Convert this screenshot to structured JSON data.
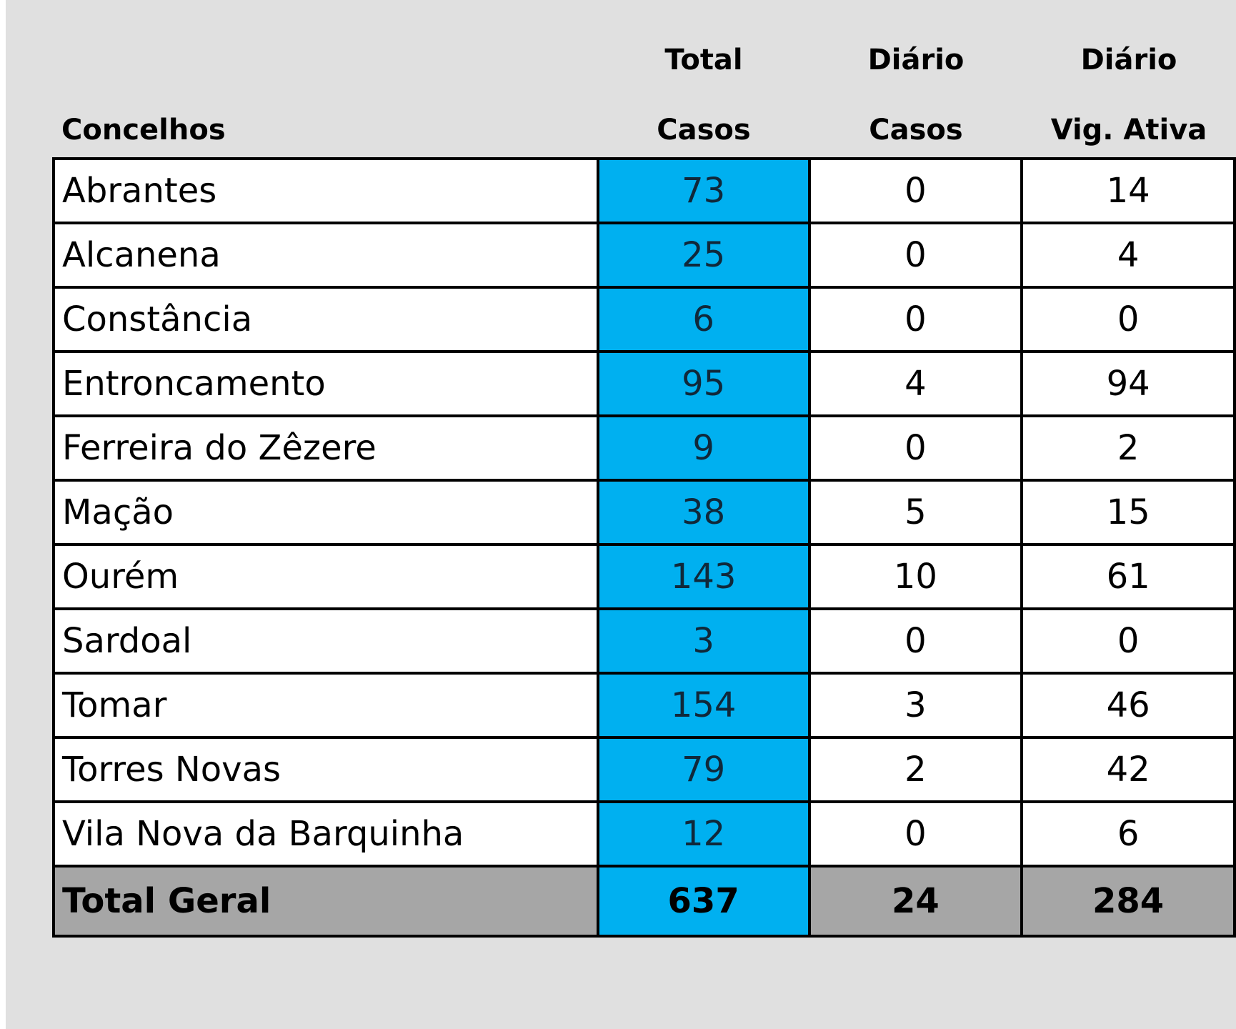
{
  "headers": {
    "concelhos": "Concelhos",
    "total_line1": "Total",
    "total_line2": "Casos",
    "diario_casos_line1": "Diário",
    "diario_casos_line2": "Casos",
    "diario_vig_line1": "Diário",
    "diario_vig_line2": "Vig. Ativa"
  },
  "rows": [
    {
      "concelho": "Abrantes",
      "total_casos": "73",
      "diario_casos": "0",
      "diario_vig_ativa": "14"
    },
    {
      "concelho": "Alcanena",
      "total_casos": "25",
      "diario_casos": "0",
      "diario_vig_ativa": "4"
    },
    {
      "concelho": "Constância",
      "total_casos": "6",
      "diario_casos": "0",
      "diario_vig_ativa": "0"
    },
    {
      "concelho": "Entroncamento",
      "total_casos": "95",
      "diario_casos": "4",
      "diario_vig_ativa": "94"
    },
    {
      "concelho": "Ferreira do Zêzere",
      "total_casos": "9",
      "diario_casos": "0",
      "diario_vig_ativa": "2"
    },
    {
      "concelho": "Mação",
      "total_casos": "38",
      "diario_casos": "5",
      "diario_vig_ativa": "15"
    },
    {
      "concelho": "Ourém",
      "total_casos": "143",
      "diario_casos": "10",
      "diario_vig_ativa": "61"
    },
    {
      "concelho": "Sardoal",
      "total_casos": "3",
      "diario_casos": "0",
      "diario_vig_ativa": "0"
    },
    {
      "concelho": "Tomar",
      "total_casos": "154",
      "diario_casos": "3",
      "diario_vig_ativa": "46"
    },
    {
      "concelho": "Torres Novas",
      "total_casos": "79",
      "diario_casos": "2",
      "diario_vig_ativa": "42"
    },
    {
      "concelho": "Vila Nova da Barquinha",
      "total_casos": "12",
      "diario_casos": "0",
      "diario_vig_ativa": "6"
    }
  ],
  "total": {
    "label": "Total Geral",
    "total_casos": "637",
    "diario_casos": "24",
    "diario_vig_ativa": "284"
  },
  "colors": {
    "highlight_column": "#00b0f0",
    "total_row": "#a6a6a6",
    "background": "#e0e0e0"
  }
}
